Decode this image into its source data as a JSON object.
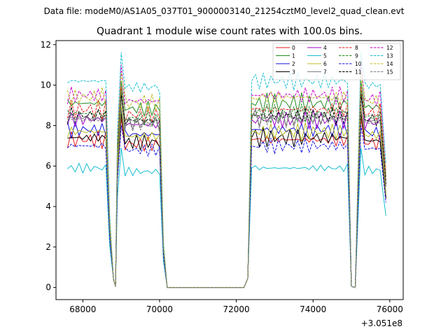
{
  "figure": {
    "suptitle": "Data file: modeM0/AS1A05_037T01_9000003140_21254cztM0_level2_quad_clean.evt"
  },
  "chart_data": {
    "type": "line",
    "title": "Quadrant 1 module wise count rates with 100.0s bins.",
    "xlabel": "",
    "ylabel": "",
    "x_offset_label": "+3.051e8",
    "x_offset": 305100000,
    "xlim": [
      67300,
      76350
    ],
    "ylim": [
      -0.6,
      12.2
    ],
    "xticks": [
      68000,
      70000,
      72000,
      74000,
      76000
    ],
    "xtick_labels": [
      "68000",
      "70000",
      "72000",
      "74000",
      "76000"
    ],
    "yticks": [
      0,
      2,
      4,
      6,
      8,
      10,
      12
    ],
    "ytick_labels": [
      "0",
      "2",
      "4",
      "6",
      "8",
      "10",
      "12"
    ],
    "legend_position": "top-right",
    "legend_columns": 4,
    "segment_1": {
      "x_start": 67600,
      "x_end": 68800,
      "step": 100
    },
    "drop_1_x": [
      68700,
      68800
    ],
    "gap_1_x": [
      68800,
      68900
    ],
    "segment_2": {
      "x_start": 68900,
      "x_end": 70000,
      "step": 100
    },
    "drop_2_x": [
      70000,
      70100,
      70200
    ],
    "zero_x_range": [
      70200,
      72200
    ],
    "rise_x": [
      72200,
      72300,
      72400
    ],
    "segment_3": {
      "x_start": 72400,
      "x_end": 74900,
      "step": 100
    },
    "gap_3_x": [
      75000,
      75100,
      75200
    ],
    "segment_4": {
      "x_start": 75200,
      "x_end": 75900,
      "step": 100
    },
    "series": [
      {
        "name": "0",
        "color": "#e41a1c",
        "dash": "solid",
        "mean": 7.3,
        "amp": 0.45,
        "phase": 0.3,
        "peak": 8.4
      },
      {
        "name": "1",
        "color": "#228b22",
        "dash": "solid",
        "mean": 9.1,
        "amp": 0.55,
        "phase": 1.1,
        "peak": 10.2
      },
      {
        "name": "2",
        "color": "#1010e0",
        "dash": "solid",
        "mean": 7.8,
        "amp": 0.45,
        "phase": 2.0,
        "peak": 8.8
      },
      {
        "name": "3",
        "color": "#000000",
        "dash": "solid",
        "mean": 7.4,
        "amp": 0.5,
        "phase": 2.7,
        "peak": 8.6
      },
      {
        "name": "4",
        "color": "#a000c8",
        "dash": "solid",
        "mean": 8.3,
        "amp": 0.5,
        "phase": 0.8,
        "peak": 9.6
      },
      {
        "name": "5",
        "color": "#17becf",
        "dash": "solid",
        "mean": 5.9,
        "amp": 0.25,
        "phase": 1.7,
        "peak": 6.9
      },
      {
        "name": "6",
        "color": "#bcbd22",
        "dash": "solid",
        "mean": 7.7,
        "amp": 0.45,
        "phase": 3.1,
        "peak": 9.0
      },
      {
        "name": "7",
        "color": "#7f7f7f",
        "dash": "solid",
        "mean": 8.4,
        "amp": 0.45,
        "phase": 0.1,
        "peak": 9.7
      },
      {
        "name": "8",
        "color": "#e41a1c",
        "dash": "dashed",
        "mean": 8.8,
        "amp": 0.5,
        "phase": 1.5,
        "peak": 9.9
      },
      {
        "name": "9",
        "color": "#228b22",
        "dash": "dashed",
        "mean": 8.6,
        "amp": 0.5,
        "phase": 2.3,
        "peak": 9.7
      },
      {
        "name": "10",
        "color": "#1010e0",
        "dash": "dashed",
        "mean": 7.0,
        "amp": 0.4,
        "phase": 0.6,
        "peak": 8.0
      },
      {
        "name": "11",
        "color": "#000000",
        "dash": "dashed",
        "mean": 8.5,
        "amp": 0.45,
        "phase": 2.9,
        "peak": 9.5
      },
      {
        "name": "12",
        "color": "#c800c8",
        "dash": "dashed",
        "mean": 9.5,
        "amp": 0.45,
        "phase": 1.9,
        "peak": 11.0
      },
      {
        "name": "13",
        "color": "#17becf",
        "dash": "dashed",
        "mean": 10.2,
        "amp": 0.45,
        "phase": 0.4,
        "peak": 11.6
      },
      {
        "name": "14",
        "color": "#bcbd22",
        "dash": "dashed",
        "mean": 9.4,
        "amp": 0.5,
        "phase": 2.5,
        "peak": 10.6
      },
      {
        "name": "15",
        "color": "#7f7f7f",
        "dash": "dashed",
        "mean": 8.3,
        "amp": 0.45,
        "phase": 1.3,
        "peak": 9.3
      }
    ]
  }
}
